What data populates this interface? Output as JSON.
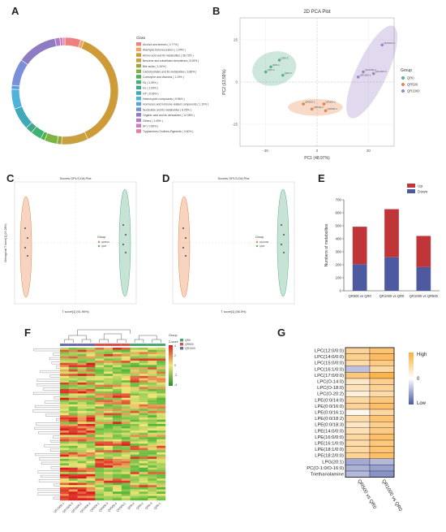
{
  "panels": {
    "A": {
      "letter": "A",
      "chart_data": {
        "type": "pie",
        "legend_title": "Class",
        "legend_placement": "right",
        "labels": [
          "Alcohol and amines ( 4.77% )",
          "Aldehyde,Ketones,Esters ( 1.04% )",
          "Amino acid and its metabolites ( 36.73% )",
          "Benzene and substituted derivatives ( 8.05% )",
          "Bile acids ( 1.34% )",
          "Carbohydrates and its metabolites ( 3.88% )",
          "Coenzyme and vitamins ( 1.19% )",
          "FA ( 3.28% )",
          "GL ( 2.09% )",
          "GP ( 6.56% )",
          "Heterocyclic compounds ( 5.96% )",
          "Hormones and hormone-related compounds ( 1.19% )",
          "Nucleotide and its metabolites ( 8.05% )",
          "Organic acid and its derivatives ( 12.08% )",
          "Others ( 1.49% )",
          "SP ( 0.89% )",
          "Tryptamines,Cholines,Pigments ( 0.60% )"
        ],
        "values": [
          4.77,
          1.04,
          36.73,
          8.05,
          1.34,
          3.88,
          1.19,
          3.28,
          2.09,
          6.56,
          5.96,
          1.19,
          8.05,
          12.08,
          1.49,
          0.89,
          0.6
        ],
        "colors": [
          "#f08080",
          "#f4a460",
          "#cd9b38",
          "#c8a040",
          "#9aa640",
          "#7cb342",
          "#4caf50",
          "#3cb371",
          "#43a58c",
          "#3fa9b8",
          "#4fb3d9",
          "#5aa0e0",
          "#7a8fd9",
          "#8e7cc3",
          "#b07cc6",
          "#d07ac0",
          "#e57ba8"
        ]
      }
    },
    "B": {
      "letter": "B",
      "chart_data": {
        "type": "scatter",
        "title": "2D PCA Plot",
        "xlabel": "PC1 (48.97%)",
        "ylabel": "PC2 (13.59%)",
        "xlim": [
          -45,
          45
        ],
        "ylim": [
          -38,
          38
        ],
        "xticks": [
          "-30",
          "0",
          "30"
        ],
        "yticks": [
          "-25",
          "0",
          "25"
        ],
        "legend_title": "Group",
        "legend_placement": "right",
        "series": [
          {
            "name": "QR0",
            "color": "#5bb08a",
            "points": [
              {
                "x": -30,
                "y": 6,
                "label": "QR0-2"
              },
              {
                "x": -27,
                "y": 9,
                "label": "QR0-1"
              },
              {
                "x": -22,
                "y": 13,
                "label": "QR0-3"
              },
              {
                "x": -20,
                "y": 4,
                "label": "QR0-4"
              }
            ]
          },
          {
            "name": "QR500",
            "color": "#e5834a",
            "points": [
              {
                "x": -8,
                "y": -13,
                "label": "QR500-1"
              },
              {
                "x": -3,
                "y": -16,
                "label": "QR500-2"
              },
              {
                "x": 4,
                "y": -13,
                "label": "QR500-3"
              },
              {
                "x": 5,
                "y": -17,
                "label": "QR500-4"
              }
            ]
          },
          {
            "name": "QR1000",
            "color": "#9b85c6",
            "points": [
              {
                "x": 24,
                "y": 3,
                "label": "QR1000-1"
              },
              {
                "x": 27,
                "y": 6,
                "label": "QR1000-2"
              },
              {
                "x": 33,
                "y": 5,
                "label": "QR1000-3"
              },
              {
                "x": 38,
                "y": 22,
                "label": "QR1000-4"
              }
            ]
          }
        ]
      }
    },
    "C": {
      "letter": "C",
      "chart_data": {
        "type": "scatter",
        "title": "Scores OPLS-DA Plot",
        "xlabel": "T score[1] (51.96%)",
        "ylabel": "Orthogonal T score[1] (20.28%)",
        "legend_title": "Group",
        "legend_placement": "right",
        "series": [
          {
            "name": "QR500",
            "color": "#e5834a"
          },
          {
            "name": "QR0",
            "color": "#5bb08a"
          }
        ]
      }
    },
    "D": {
      "letter": "D",
      "chart_data": {
        "type": "scatter",
        "title": "Scores OPLS-DA Plot",
        "xlabel": "T score[1] (56.5%)",
        "ylabel": "",
        "legend_title": "Group",
        "legend_placement": "right",
        "series": [
          {
            "name": "QR1000",
            "color": "#e5834a"
          },
          {
            "name": "QR0",
            "color": "#5bb08a"
          }
        ]
      }
    },
    "E": {
      "letter": "E",
      "chart_data": {
        "type": "bar",
        "stacked": true,
        "categories": [
          "QR500 vs QR0",
          "QR1000 vs QR0",
          "QR1000 vs QR500"
        ],
        "ylabel": "Numbers of metabolites",
        "ylim": [
          0,
          700
        ],
        "yticks": [
          0,
          100,
          200,
          300,
          400,
          500,
          600,
          700
        ],
        "legend_placement": "top-right",
        "series": [
          {
            "name": "Down",
            "color": "#4d5aa0",
            "values": [
              205,
              258,
              182
            ]
          },
          {
            "name": "Up",
            "color": "#c03638",
            "values": [
              288,
              370,
              240
            ]
          }
        ]
      }
    },
    "F": {
      "letter": "F",
      "chart_data": {
        "type": "heatmap",
        "legend_group_title": "Group",
        "legend_scale_title": "Z-score",
        "scale_ticks": [
          "4",
          "2",
          "0",
          "-2",
          "-4"
        ],
        "groups": [
          {
            "name": "QR0",
            "color": "#45a86e"
          },
          {
            "name": "QR500",
            "color": "#d65050"
          },
          {
            "name": "QR1000",
            "color": "#6a6aa8"
          }
        ],
        "columns": [
          "QR1000-1",
          "QR1000-3",
          "QR1000-2",
          "QR1000-4",
          "QR500-1",
          "QR500-3",
          "QR500-4",
          "QR500-2",
          "QR0-4",
          "QR0-2",
          "QR0-3",
          "QR0-1"
        ]
      }
    },
    "G": {
      "letter": "G",
      "chart_data": {
        "type": "heatmap",
        "columns": [
          "QR500 vs QR0",
          "QR1000 vs QR0"
        ],
        "scale_labels": {
          "high": "High",
          "mid": "0",
          "low": "Low"
        },
        "rows": [
          "LPC(12:0/0:0)",
          "LPC(14:0/0:0)",
          "LPC(15:0/0:0)",
          "LPC(16:1/0:0)",
          "LPC(17:0/0:0)",
          "LPC(O-14:0)",
          "LPC(O-18:0)",
          "LPC(O-20:2)",
          "LPE(0:0/14:0)",
          "LPE(0:0/16:0)",
          "LPE(0:0/16:1)",
          "LPE(0:0/18:2)",
          "LPE(0:0/18:3)",
          "LPE(14:0/0:0)",
          "LPE(16:0/0:0)",
          "LPE(16:1/0:0)",
          "LPE(18:1/0:0)",
          "LPE(18:2/0:0)",
          "LPG(20:1)",
          "PC(O-1:0/O-16:0)",
          "Triethanolamine"
        ],
        "values": [
          [
            0.55,
            0.75
          ],
          [
            0.6,
            0.85
          ],
          [
            0.45,
            0.65
          ],
          [
            -0.4,
            0.5
          ],
          [
            0.7,
            0.95
          ],
          [
            0.3,
            0.6
          ],
          [
            0.35,
            0.55
          ],
          [
            0.2,
            0.45
          ],
          [
            0.5,
            0.7
          ],
          [
            0.55,
            0.8
          ],
          [
            0.1,
            0.5
          ],
          [
            0.45,
            0.75
          ],
          [
            0.3,
            0.6
          ],
          [
            0.4,
            0.65
          ],
          [
            0.5,
            0.8
          ],
          [
            0.45,
            0.7
          ],
          [
            0.5,
            0.75
          ],
          [
            0.55,
            0.8
          ],
          [
            -0.55,
            -0.45
          ],
          [
            -0.5,
            -0.6
          ],
          [
            -0.45,
            -0.7
          ]
        ]
      }
    }
  }
}
